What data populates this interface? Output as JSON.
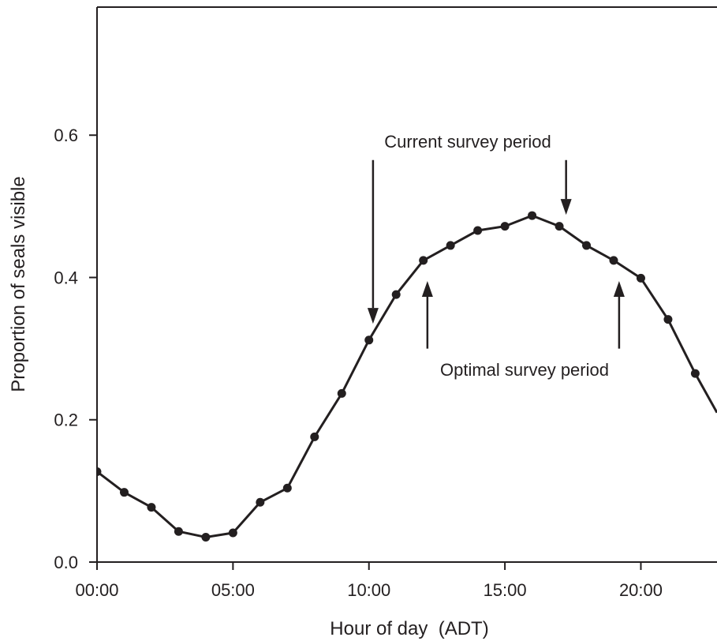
{
  "chart_data": {
    "type": "line",
    "xlabel": "Hour of day  (ADT)",
    "ylabel": "Proportion of seals visible",
    "xlim": [
      0,
      22.8
    ],
    "ylim": [
      0,
      0.78
    ],
    "x_ticks": [
      0,
      5,
      10,
      15,
      20
    ],
    "x_tick_labels": [
      "00:00",
      "05:00",
      "10:00",
      "15:00",
      "20:00"
    ],
    "y_ticks": [
      0,
      0.2,
      0.4,
      0.6
    ],
    "y_tick_labels": [
      "0.0",
      "0.2",
      "0.4",
      "0.6"
    ],
    "grid": false,
    "series": [
      {
        "x": [
          0,
          1,
          2,
          3,
          4,
          5,
          6,
          7,
          8,
          9,
          10,
          11,
          12,
          13,
          14,
          15,
          16,
          17,
          18,
          19,
          20,
          21,
          22
        ],
        "values": [
          0.127,
          0.098,
          0.077,
          0.043,
          0.035,
          0.041,
          0.084,
          0.104,
          0.176,
          0.237,
          0.312,
          0.376,
          0.424,
          0.445,
          0.466,
          0.472,
          0.487,
          0.472,
          0.445,
          0.424,
          0.399,
          0.341,
          0.265
        ],
        "continues_to": {
          "x": 22.8,
          "value": 0.21
        }
      }
    ],
    "annotations": [
      {
        "text": "Current survey period",
        "arrows": [
          {
            "x": 10.15,
            "from": 0.565,
            "to": 0.335
          },
          {
            "x": 17.25,
            "from": 0.565,
            "to": 0.488
          }
        ]
      },
      {
        "text": "Optimal survey period",
        "arrows": [
          {
            "x": 12.15,
            "from": 0.3,
            "to": 0.395
          },
          {
            "x": 19.2,
            "from": 0.3,
            "to": 0.395
          }
        ]
      }
    ]
  }
}
